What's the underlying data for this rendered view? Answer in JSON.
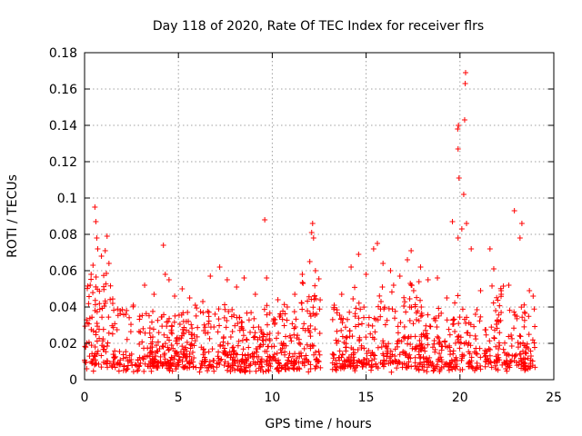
{
  "chart_data": {
    "type": "scatter",
    "title": "Day 118 of 2020, Rate Of TEC Index for receiver flrs",
    "xlabel": "GPS time / hours",
    "ylabel": "ROTI / TECUs",
    "xlim": [
      0,
      25
    ],
    "ylim": [
      0,
      0.18
    ],
    "xticks": [
      0,
      5,
      10,
      15,
      20,
      25
    ],
    "xtick_labels": [
      "0",
      "5",
      "10",
      "15",
      "20",
      "25"
    ],
    "yticks": [
      0,
      0.02,
      0.04,
      0.06,
      0.08,
      0.1,
      0.12,
      0.14,
      0.16,
      0.18
    ],
    "ytick_labels": [
      "0",
      "0.02",
      "0.04",
      "0.06",
      "0.08",
      "0.1",
      "0.12",
      "0.14",
      "0.16",
      "0.18"
    ],
    "grid": true,
    "marker": "plus",
    "color": "#ff0000",
    "series": [
      {
        "name": "ROTI",
        "points": [
          [
            0.3,
            0.052
          ],
          [
            0.35,
            0.058
          ],
          [
            0.45,
            0.063
          ],
          [
            0.55,
            0.095
          ],
          [
            0.6,
            0.087
          ],
          [
            0.65,
            0.078
          ],
          [
            0.7,
            0.072
          ],
          [
            0.9,
            0.068
          ],
          [
            1.1,
            0.071
          ],
          [
            1.2,
            0.079
          ],
          [
            1.3,
            0.064
          ],
          [
            1.5,
            0.042
          ],
          [
            1.9,
            0.038
          ],
          [
            2.2,
            0.036
          ],
          [
            2.6,
            0.041
          ],
          [
            3.2,
            0.052
          ],
          [
            3.7,
            0.047
          ],
          [
            4.2,
            0.074
          ],
          [
            4.3,
            0.058
          ],
          [
            4.5,
            0.055
          ],
          [
            4.8,
            0.046
          ],
          [
            5.2,
            0.05
          ],
          [
            5.6,
            0.045
          ],
          [
            5.9,
            0.041
          ],
          [
            6.3,
            0.043
          ],
          [
            6.7,
            0.057
          ],
          [
            7.2,
            0.062
          ],
          [
            7.6,
            0.055
          ],
          [
            8.1,
            0.051
          ],
          [
            8.5,
            0.056
          ],
          [
            9.1,
            0.047
          ],
          [
            9.6,
            0.088
          ],
          [
            9.7,
            0.056
          ],
          [
            10.3,
            0.044
          ],
          [
            10.8,
            0.04
          ],
          [
            11.2,
            0.047
          ],
          [
            11.6,
            0.058
          ],
          [
            12.0,
            0.065
          ],
          [
            12.1,
            0.081
          ],
          [
            12.15,
            0.086
          ],
          [
            12.2,
            0.078
          ],
          [
            12.3,
            0.06
          ],
          [
            13.3,
            0.041
          ],
          [
            13.7,
            0.047
          ],
          [
            14.2,
            0.062
          ],
          [
            14.6,
            0.069
          ],
          [
            15.0,
            0.058
          ],
          [
            15.4,
            0.072
          ],
          [
            15.6,
            0.075
          ],
          [
            15.9,
            0.064
          ],
          [
            16.3,
            0.06
          ],
          [
            16.8,
            0.057
          ],
          [
            17.2,
            0.066
          ],
          [
            17.4,
            0.071
          ],
          [
            17.9,
            0.062
          ],
          [
            18.3,
            0.055
          ],
          [
            18.8,
            0.056
          ],
          [
            19.3,
            0.045
          ],
          [
            19.6,
            0.087
          ],
          [
            19.9,
            0.078
          ],
          [
            19.95,
            0.111
          ],
          [
            19.9,
            0.127
          ],
          [
            19.88,
            0.138
          ],
          [
            19.92,
            0.14
          ],
          [
            20.1,
            0.083
          ],
          [
            20.2,
            0.102
          ],
          [
            20.25,
            0.143
          ],
          [
            20.28,
            0.163
          ],
          [
            20.3,
            0.169
          ],
          [
            20.35,
            0.086
          ],
          [
            20.6,
            0.072
          ],
          [
            21.1,
            0.049
          ],
          [
            21.6,
            0.072
          ],
          [
            21.8,
            0.061
          ],
          [
            22.2,
            0.047
          ],
          [
            22.6,
            0.052
          ],
          [
            22.9,
            0.093
          ],
          [
            23.2,
            0.078
          ],
          [
            23.3,
            0.086
          ],
          [
            23.7,
            0.049
          ],
          [
            23.9,
            0.046
          ]
        ]
      }
    ]
  }
}
